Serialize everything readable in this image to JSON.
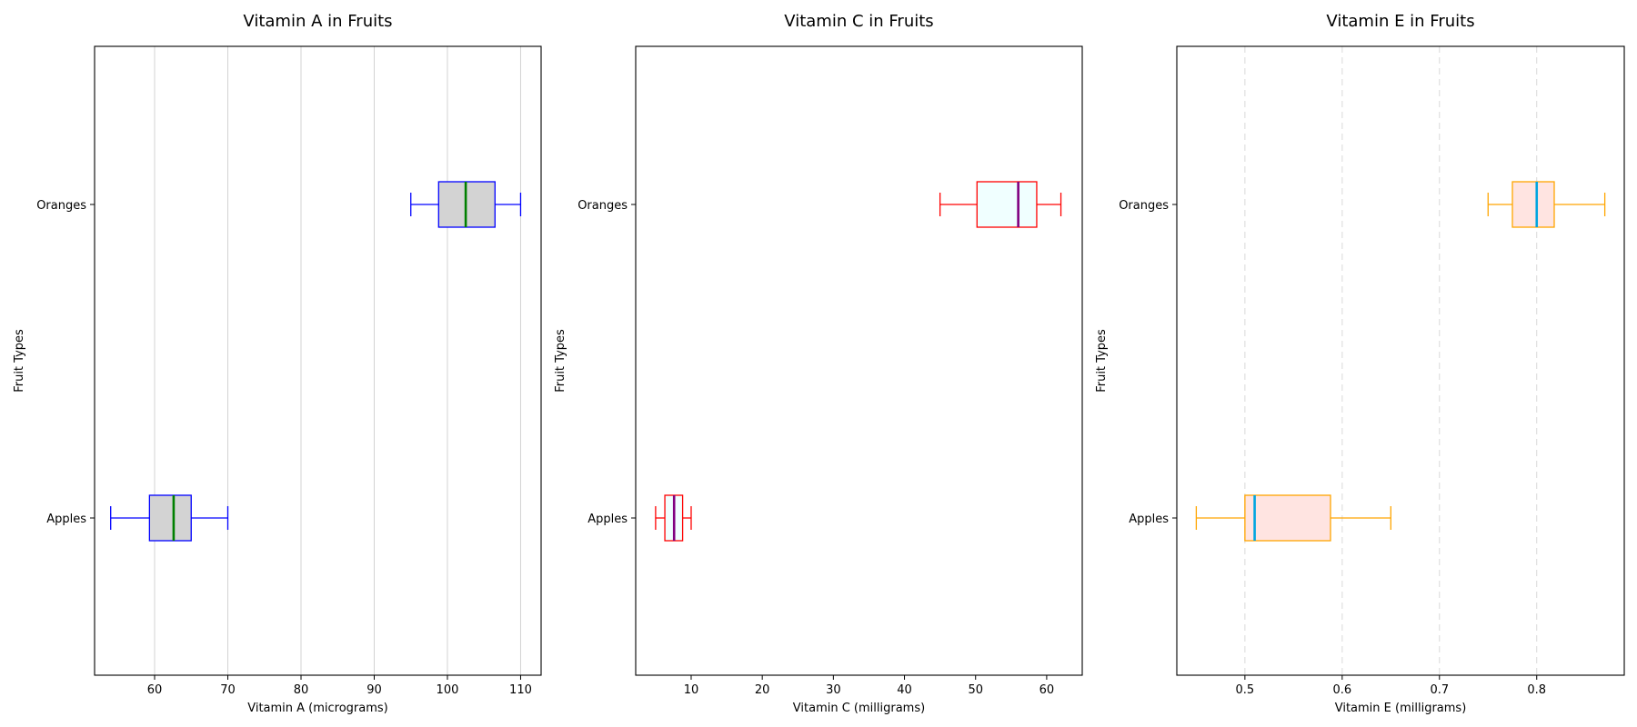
{
  "chart_data": [
    {
      "type": "boxplot",
      "orientation": "horizontal",
      "title": "Vitamin A in Fruits",
      "xlabel": "Vitamin A (micrograms)",
      "ylabel": "Fruit Types",
      "categories": [
        "Apples",
        "Oranges"
      ],
      "xlim": [
        51.8,
        112.8
      ],
      "xticks": [
        60,
        70,
        80,
        90,
        100,
        110
      ],
      "tick_labels": [
        "60",
        "70",
        "80",
        "90",
        "100",
        "110"
      ],
      "grid": {
        "on": true,
        "axis": "x",
        "style": "solid"
      },
      "colors": {
        "box_edge": "#0000ff",
        "box_fill": "#d3d3d3",
        "median": "#008000",
        "whisker": "#0000ff",
        "grid": "#d3d3d3"
      },
      "boxes": [
        {
          "category": "Apples",
          "whislo": 54,
          "q1": 59.3,
          "med": 62.6,
          "q3": 65,
          "whishi": 70
        },
        {
          "category": "Oranges",
          "whislo": 95,
          "q1": 98.8,
          "med": 102.5,
          "q3": 106.5,
          "whishi": 110
        }
      ]
    },
    {
      "type": "boxplot",
      "orientation": "horizontal",
      "title": "Vitamin C in Fruits",
      "xlabel": "Vitamin C (milligrams)",
      "ylabel": "Fruit Types",
      "categories": [
        "Apples",
        "Oranges"
      ],
      "xlim": [
        2.2,
        65.0
      ],
      "xticks": [
        10,
        20,
        30,
        40,
        50,
        60
      ],
      "tick_labels": [
        "10",
        "20",
        "30",
        "40",
        "50",
        "60"
      ],
      "grid": {
        "on": false
      },
      "colors": {
        "box_edge": "#ff0000",
        "box_fill": "#f0ffff",
        "median": "#800080",
        "whisker": "#ff0000",
        "grid": "#d3d3d3"
      },
      "boxes": [
        {
          "category": "Apples",
          "whislo": 5,
          "q1": 6.3,
          "med": 7.6,
          "q3": 8.8,
          "whishi": 10
        },
        {
          "category": "Oranges",
          "whislo": 45,
          "q1": 50.2,
          "med": 56,
          "q3": 58.6,
          "whishi": 62
        }
      ]
    },
    {
      "type": "boxplot",
      "orientation": "horizontal",
      "title": "Vitamin E in Fruits",
      "xlabel": "Vitamin E (milligrams)",
      "ylabel": "Fruit Types",
      "categories": [
        "Apples",
        "Oranges"
      ],
      "xlim": [
        0.43,
        0.89
      ],
      "xticks": [
        0.5,
        0.6,
        0.7,
        0.8
      ],
      "tick_labels": [
        "0.5",
        "0.6",
        "0.7",
        "0.8"
      ],
      "grid": {
        "on": true,
        "axis": "x",
        "style": "dashed"
      },
      "colors": {
        "box_edge": "#ffa500",
        "box_fill": "#ffe4e1",
        "median": "#00a5e0",
        "whisker": "#ffa500",
        "grid": "#d9d9d9"
      },
      "boxes": [
        {
          "category": "Apples",
          "whislo": 0.45,
          "q1": 0.5,
          "med": 0.51,
          "q3": 0.588,
          "whishi": 0.65
        },
        {
          "category": "Oranges",
          "whislo": 0.75,
          "q1": 0.775,
          "med": 0.8,
          "q3": 0.818,
          "whishi": 0.87
        }
      ]
    }
  ]
}
